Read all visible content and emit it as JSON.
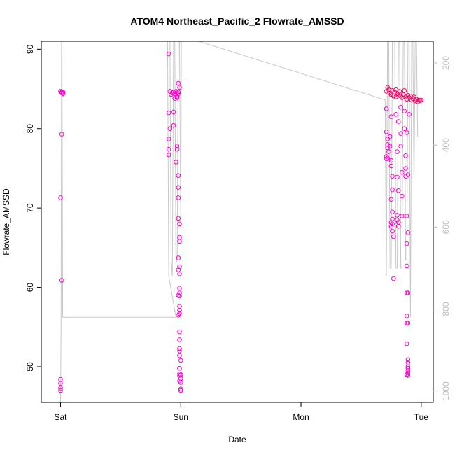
{
  "chart_data": {
    "type": "scatter",
    "title": "ATOM4 Northeast_Pacific_2 Flowrate_AMSSD",
    "xlabel": "Date",
    "ylabel": "Flowrate_AMSSD",
    "x_ticks": [
      {
        "label": "Sat",
        "value": 0
      },
      {
        "label": "Sun",
        "value": 1
      },
      {
        "label": "Mon",
        "value": 2
      },
      {
        "label": "Tue",
        "value": 3
      }
    ],
    "xlim": [
      -0.16,
      3.1
    ],
    "ylim": [
      45.5,
      91.0
    ],
    "y_ticks": [
      50,
      60,
      70,
      80,
      90
    ],
    "y2_ticks": [
      200,
      400,
      600,
      800,
      1000
    ],
    "y2lim": [
      1028,
      147
    ],
    "colors": {
      "points_primary": "#ff00cc",
      "points_secondary": "#ff0066",
      "line": "#c8c8c8",
      "right_axis": "#bdbdbd"
    },
    "series": [
      {
        "values": [
          [
            0.01,
            84.6
          ],
          [
            0.02,
            84.4
          ],
          [
            0.01,
            84.5
          ],
          [
            0.0,
            84.7
          ],
          [
            0.02,
            84.6
          ],
          [
            0.01,
            79.3
          ],
          [
            0.0,
            71.3
          ],
          [
            0.01,
            60.9
          ],
          [
            0.0,
            48.4
          ],
          [
            0.0,
            47.9
          ],
          [
            0.0,
            47.3
          ],
          [
            0.0,
            47.0
          ],
          [
            0.9,
            89.4
          ],
          [
            0.91,
            84.7
          ],
          [
            0.92,
            84.3
          ],
          [
            0.93,
            84.5
          ],
          [
            0.94,
            84.6
          ],
          [
            0.95,
            84.4
          ],
          [
            0.96,
            84.7
          ],
          [
            0.97,
            84.5
          ],
          [
            0.98,
            84.6
          ],
          [
            0.99,
            85.2
          ],
          [
            0.9,
            82.0
          ],
          [
            0.91,
            80.0
          ],
          [
            0.9,
            78.7
          ],
          [
            0.9,
            77.4
          ],
          [
            0.9,
            76.7
          ],
          [
            0.94,
            82.1
          ],
          [
            0.94,
            80.4
          ],
          [
            0.95,
            83.8
          ],
          [
            0.97,
            84.0
          ],
          [
            0.98,
            84.4
          ],
          [
            0.98,
            85.7
          ],
          [
            0.97,
            83.9
          ],
          [
            0.97,
            77.8
          ],
          [
            0.97,
            77.4
          ],
          [
            0.96,
            75.8
          ],
          [
            0.98,
            74.1
          ],
          [
            0.98,
            72.6
          ],
          [
            0.98,
            71.3
          ],
          [
            0.98,
            68.7
          ],
          [
            0.99,
            68.0
          ],
          [
            0.99,
            66.3
          ],
          [
            0.99,
            65.8
          ],
          [
            0.98,
            63.7
          ],
          [
            0.99,
            62.6
          ],
          [
            0.98,
            62.2
          ],
          [
            0.99,
            61.7
          ],
          [
            0.99,
            59.9
          ],
          [
            0.99,
            59.3
          ],
          [
            0.98,
            59.0
          ],
          [
            0.99,
            58.9
          ],
          [
            0.99,
            57.6
          ],
          [
            0.99,
            57.1
          ],
          [
            0.99,
            56.7
          ],
          [
            0.98,
            56.5
          ],
          [
            0.99,
            54.4
          ],
          [
            0.99,
            53.4
          ],
          [
            0.99,
            52.3
          ],
          [
            0.99,
            52.0
          ],
          [
            0.99,
            51.4
          ],
          [
            1.0,
            50.8
          ],
          [
            0.99,
            49.8
          ],
          [
            0.99,
            49.1
          ],
          [
            1.0,
            49.0
          ],
          [
            0.99,
            48.9
          ],
          [
            1.0,
            48.5
          ],
          [
            0.99,
            48.2
          ],
          [
            1.0,
            48.0
          ],
          [
            1.0,
            47.2
          ],
          [
            1.0,
            47.0
          ],
          [
            2.71,
            84.7
          ],
          [
            2.72,
            85.2
          ],
          [
            2.73,
            84.9
          ],
          [
            2.74,
            84.5
          ],
          [
            2.75,
            84.3
          ],
          [
            2.76,
            84.8
          ],
          [
            2.77,
            84.1
          ],
          [
            2.78,
            84.6
          ],
          [
            2.79,
            84.0
          ],
          [
            2.8,
            84.4
          ],
          [
            2.81,
            84.2
          ],
          [
            2.82,
            84.7
          ],
          [
            2.83,
            84.1
          ],
          [
            2.84,
            83.9
          ],
          [
            2.85,
            84.3
          ],
          [
            2.86,
            84.8
          ],
          [
            2.87,
            84.0
          ],
          [
            2.88,
            83.7
          ],
          [
            2.89,
            84.2
          ],
          [
            2.9,
            83.9
          ],
          [
            2.91,
            84.1
          ],
          [
            2.92,
            83.6
          ],
          [
            2.93,
            83.8
          ],
          [
            2.94,
            84.0
          ],
          [
            2.95,
            83.5
          ],
          [
            2.96,
            83.7
          ],
          [
            2.97,
            83.4
          ],
          [
            2.98,
            83.6
          ],
          [
            2.99,
            83.5
          ],
          [
            3.0,
            83.6
          ],
          [
            2.71,
            82.5
          ],
          [
            2.71,
            79.6
          ],
          [
            2.72,
            78.0
          ],
          [
            2.72,
            77.6
          ],
          [
            2.71,
            76.5
          ],
          [
            2.72,
            76.3
          ],
          [
            2.71,
            76.2
          ],
          [
            2.73,
            77.1
          ],
          [
            2.72,
            78.7
          ],
          [
            2.75,
            81.5
          ],
          [
            2.74,
            79.0
          ],
          [
            2.74,
            77.8
          ],
          [
            2.75,
            76.0
          ],
          [
            2.75,
            75.3
          ],
          [
            2.76,
            74.0
          ],
          [
            2.76,
            72.3
          ],
          [
            2.75,
            71.1
          ],
          [
            2.76,
            69.5
          ],
          [
            2.76,
            68.6
          ],
          [
            2.75,
            68.2
          ],
          [
            2.76,
            68.0
          ],
          [
            2.75,
            67.7
          ],
          [
            2.76,
            67.1
          ],
          [
            2.77,
            66.4
          ],
          [
            2.77,
            61.1
          ],
          [
            2.79,
            84.9
          ],
          [
            2.79,
            81.8
          ],
          [
            2.8,
            77.1
          ],
          [
            2.8,
            73.9
          ],
          [
            2.81,
            72.2
          ],
          [
            2.8,
            69.1
          ],
          [
            2.8,
            68.5
          ],
          [
            2.81,
            68.2
          ],
          [
            2.81,
            67.7
          ],
          [
            2.81,
            80.9
          ],
          [
            2.83,
            82.7
          ],
          [
            2.83,
            79.4
          ],
          [
            2.83,
            77.8
          ],
          [
            2.84,
            74.5
          ],
          [
            2.84,
            71.5
          ],
          [
            2.84,
            69.0
          ],
          [
            2.86,
            82.2
          ],
          [
            2.86,
            80.0
          ],
          [
            2.87,
            76.6
          ],
          [
            2.87,
            75.0
          ],
          [
            2.87,
            74.0
          ],
          [
            2.88,
            79.5
          ],
          [
            2.88,
            69.0
          ],
          [
            2.89,
            66.9
          ],
          [
            2.88,
            65.5
          ],
          [
            2.88,
            62.7
          ],
          [
            2.88,
            59.3
          ],
          [
            2.89,
            59.3
          ],
          [
            2.9,
            81.8
          ],
          [
            2.89,
            74.2
          ],
          [
            2.88,
            56.4
          ],
          [
            2.88,
            55.5
          ],
          [
            2.89,
            55.5
          ],
          [
            2.88,
            52.9
          ],
          [
            2.89,
            50.9
          ],
          [
            2.89,
            50.5
          ],
          [
            2.89,
            50.0
          ],
          [
            2.89,
            49.8
          ],
          [
            2.89,
            49.5
          ],
          [
            2.89,
            49.2
          ],
          [
            2.88,
            49.0
          ],
          [
            2.89,
            48.9
          ]
        ]
      }
    ],
    "line_series": {
      "axis": "right",
      "values": [
        [
          0.0,
          1028
        ],
        [
          0.005,
          820
        ],
        [
          0.008,
          147
        ],
        [
          0.012,
          147
        ],
        [
          0.018,
          820
        ],
        [
          0.03,
          820
        ],
        [
          0.96,
          820
        ],
        [
          0.9,
          720
        ],
        [
          0.89,
          147
        ],
        [
          0.91,
          147
        ],
        [
          0.92,
          680
        ],
        [
          0.93,
          720
        ],
        [
          0.94,
          147
        ],
        [
          0.95,
          147
        ],
        [
          0.96,
          690
        ],
        [
          0.97,
          680
        ],
        [
          0.98,
          147
        ],
        [
          0.99,
          147
        ],
        [
          1.0,
          600
        ],
        [
          1.005,
          147
        ],
        [
          1.02,
          147
        ],
        [
          1.15,
          147
        ],
        [
          2.7,
          290
        ],
        [
          2.71,
          720
        ],
        [
          2.72,
          147
        ],
        [
          2.73,
          147
        ],
        [
          2.74,
          700
        ],
        [
          2.75,
          700
        ],
        [
          2.76,
          147
        ],
        [
          2.78,
          147
        ],
        [
          2.79,
          700
        ],
        [
          2.8,
          700
        ],
        [
          2.81,
          147
        ],
        [
          2.82,
          147
        ],
        [
          2.83,
          700
        ],
        [
          2.84,
          700
        ],
        [
          2.85,
          147
        ],
        [
          2.86,
          147
        ],
        [
          2.87,
          680
        ],
        [
          2.88,
          680
        ],
        [
          2.89,
          147
        ],
        [
          2.9,
          147
        ],
        [
          2.91,
          820
        ],
        [
          2.92,
          147
        ],
        [
          2.93,
          147
        ],
        [
          2.94,
          500
        ],
        [
          2.95,
          147
        ],
        [
          2.96,
          147
        ],
        [
          2.97,
          380
        ]
      ]
    }
  }
}
